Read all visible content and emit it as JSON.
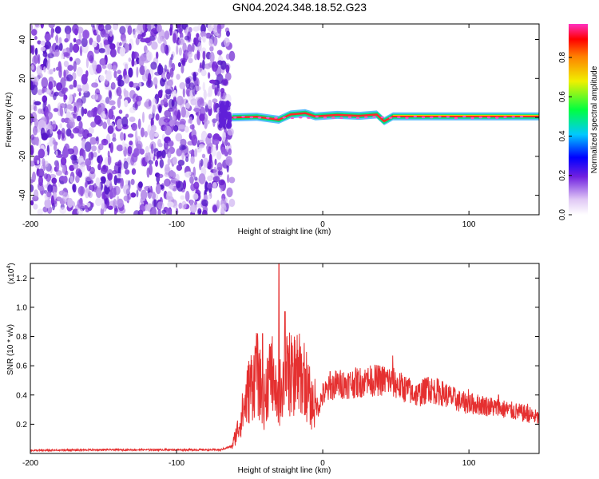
{
  "title": "GN04.2024.348.18.52.G23",
  "chart_data": [
    {
      "type": "heatmap",
      "xlabel": "Height of straight line (km)",
      "ylabel": "Frequency (Hz)",
      "xlim": [
        -200,
        148
      ],
      "ylim": [
        -50,
        48
      ],
      "xticks": [
        -200,
        -100,
        0,
        100
      ],
      "yticks": [
        -40,
        -20,
        0,
        20,
        40
      ],
      "noise_region_x": [
        -200,
        -62
      ],
      "ridge": {
        "frequency_hz": 0,
        "x_range": [
          -62,
          148
        ],
        "offsets": [
          [
            -62,
            0
          ],
          [
            -45,
            0.3
          ],
          [
            -30,
            -1.2
          ],
          [
            -22,
            1.5
          ],
          [
            -12,
            2.2
          ],
          [
            -5,
            0.5
          ],
          [
            10,
            1.3
          ],
          [
            25,
            0.8
          ],
          [
            37,
            1.5
          ],
          [
            42,
            -2
          ],
          [
            48,
            0.5
          ],
          [
            148,
            0.5
          ]
        ]
      },
      "colorbar": {
        "label": "Normalized spectral amplitude",
        "range": [
          0,
          0.97
        ],
        "ticks": [
          0.0,
          0.2,
          0.4,
          0.6,
          0.8
        ]
      }
    },
    {
      "type": "line",
      "xlabel": "Height of straight line (km)",
      "ylabel": "SNR (10 * v/v)",
      "multiplier": "(x10",
      "multiplier_exp": "4",
      "multiplier_close": ")",
      "xlim": [
        -200,
        148
      ],
      "ylim": [
        0,
        1.3
      ],
      "xticks": [
        -200,
        -100,
        0,
        100
      ],
      "yticks": [
        0.2,
        0.4,
        0.6,
        0.8,
        1.0,
        1.2
      ],
      "color": "#e53030",
      "envelope": [
        [
          -200,
          0.02
        ],
        [
          -150,
          0.025
        ],
        [
          -100,
          0.025
        ],
        [
          -70,
          0.025
        ],
        [
          -62,
          0.05
        ],
        [
          -57,
          0.2
        ],
        [
          -50,
          0.45
        ],
        [
          -45,
          0.55
        ],
        [
          -40,
          0.35
        ],
        [
          -38,
          0.5
        ],
        [
          -34,
          0.55
        ],
        [
          -31,
          0.3
        ],
        [
          -28,
          0.5
        ],
        [
          -22,
          0.55
        ],
        [
          -18,
          0.55
        ],
        [
          -12,
          0.5
        ],
        [
          -8,
          0.35
        ],
        [
          -3,
          0.32
        ],
        [
          0,
          0.4
        ],
        [
          8,
          0.47
        ],
        [
          20,
          0.48
        ],
        [
          35,
          0.5
        ],
        [
          45,
          0.5
        ],
        [
          55,
          0.45
        ],
        [
          65,
          0.4
        ],
        [
          72,
          0.44
        ],
        [
          80,
          0.42
        ],
        [
          95,
          0.35
        ],
        [
          110,
          0.33
        ],
        [
          125,
          0.3
        ],
        [
          140,
          0.27
        ],
        [
          148,
          0.24
        ]
      ],
      "peaks": [
        [
          -46,
          0.72
        ],
        [
          -44,
          0.6
        ],
        [
          -41,
          0.82
        ],
        [
          -39,
          0.55
        ],
        [
          -36,
          0.73
        ],
        [
          -33,
          0.5
        ],
        [
          -30,
          1.3
        ],
        [
          -26,
          0.97
        ],
        [
          -24,
          0.68
        ],
        [
          -20,
          0.62
        ],
        [
          -18,
          0.65
        ],
        [
          -13,
          0.6
        ],
        [
          -8,
          0.45
        ],
        [
          5,
          0.56
        ],
        [
          15,
          0.52
        ],
        [
          30,
          0.55
        ],
        [
          48,
          0.67
        ],
        [
          60,
          0.5
        ],
        [
          72,
          0.52
        ],
        [
          100,
          0.44
        ],
        [
          120,
          0.4
        ],
        [
          140,
          0.34
        ]
      ]
    }
  ]
}
